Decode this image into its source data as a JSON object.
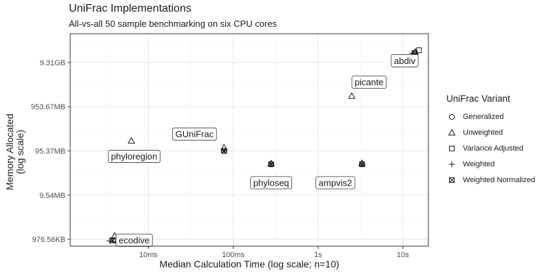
{
  "chart_data": {
    "type": "scatter",
    "title": "UniFrac Implementations",
    "subtitle": "All-vs-all 50 sample benchmarking on six CPU cores",
    "xlabel": "Median Calculation Time (log scale; n=10)",
    "ylabel_lines": [
      "Memory Allocated",
      "(log scale)"
    ],
    "x_scale": "log10",
    "y_scale": "log10",
    "x_unit": "seconds",
    "y_unit": "bytes",
    "xlim": [
      0.0012,
      20
    ],
    "ylim": [
      700000,
      45000000000
    ],
    "x_ticks": [
      {
        "value": 0.01,
        "label": "10ms"
      },
      {
        "value": 0.1,
        "label": "100ms"
      },
      {
        "value": 1,
        "label": "1s"
      },
      {
        "value": 10,
        "label": "10s"
      }
    ],
    "y_ticks": [
      {
        "value": 1000000,
        "label": "976.56KB"
      },
      {
        "value": 10000000,
        "label": "9.54MB"
      },
      {
        "value": 100000000,
        "label": "95.37MB"
      },
      {
        "value": 1000000000,
        "label": "953.67MB"
      },
      {
        "value": 10000000000,
        "label": "9.31GB"
      }
    ],
    "grid": true,
    "legend": {
      "title": "UniFrac Variant",
      "position": "right",
      "items": [
        {
          "name": "Generalized",
          "shape": "circle"
        },
        {
          "name": "Unweighted",
          "shape": "triangle"
        },
        {
          "name": "Variance Adjusted",
          "shape": "square"
        },
        {
          "name": "Weighted",
          "shape": "plus"
        },
        {
          "name": "Weighted Normalized",
          "shape": "boxed-x"
        }
      ]
    },
    "series": [
      {
        "name": "Generalized",
        "points": [
          {
            "label": "abdiv",
            "x": 13.5,
            "y": 16000000000
          },
          {
            "label": "phyloseq",
            "x": 0.28,
            "y": 50000000
          },
          {
            "label": "ampvis2",
            "x": 3.3,
            "y": 50000000
          },
          {
            "label": "ecodive",
            "x": 0.00395,
            "y": 960000
          },
          {
            "label": "GUniFrac",
            "x": 0.078,
            "y": 100000000
          }
        ]
      },
      {
        "name": "Unweighted",
        "points": [
          {
            "label": "abdiv",
            "x": 14.0,
            "y": 17500000000
          },
          {
            "label": "picante",
            "x": 2.5,
            "y": 1750000000
          },
          {
            "label": "phyloregion",
            "x": 0.0063,
            "y": 170000000
          },
          {
            "label": "GUniFrac",
            "x": 0.078,
            "y": 120000000
          },
          {
            "label": "phyloseq",
            "x": 0.28,
            "y": 52000000
          },
          {
            "label": "ampvis2",
            "x": 3.3,
            "y": 53000000
          },
          {
            "label": "ecodive",
            "x": 0.004,
            "y": 1200000
          }
        ]
      },
      {
        "name": "Variance Adjusted",
        "points": [
          {
            "label": "abdiv",
            "x": 15.5,
            "y": 19000000000
          },
          {
            "label": "ecodive",
            "x": 0.0041,
            "y": 940000
          }
        ]
      },
      {
        "name": "Weighted",
        "points": [
          {
            "label": "abdiv",
            "x": 13.0,
            "y": 16000000000
          },
          {
            "label": "phyloseq",
            "x": 0.28,
            "y": 50000000
          },
          {
            "label": "ampvis2",
            "x": 3.3,
            "y": 50000000
          },
          {
            "label": "GUniFrac",
            "x": 0.078,
            "y": 100000000
          },
          {
            "label": "ecodive",
            "x": 0.0035,
            "y": 920000
          }
        ]
      },
      {
        "name": "Weighted Normalized",
        "points": [
          {
            "label": "abdiv",
            "x": 13.8,
            "y": 16500000000
          },
          {
            "label": "phyloseq",
            "x": 0.28,
            "y": 50000000
          },
          {
            "label": "ampvis2",
            "x": 3.3,
            "y": 50000000
          },
          {
            "label": "GUniFrac",
            "x": 0.078,
            "y": 100000000
          },
          {
            "label": "ecodive",
            "x": 0.0038,
            "y": 950000
          }
        ]
      }
    ],
    "annotations": [
      {
        "text": "abdiv",
        "x": 10.5,
        "y": 11000000000
      },
      {
        "text": "picante",
        "x": 4.0,
        "y": 3600000000
      },
      {
        "text": "GUniFrac",
        "x": 0.035,
        "y": 240000000
      },
      {
        "text": "phyloregion",
        "x": 0.0068,
        "y": 75000000
      },
      {
        "text": "phyloseq",
        "x": 0.28,
        "y": 19000000
      },
      {
        "text": "ampvis2",
        "x": 1.6,
        "y": 19000000
      },
      {
        "text": "ecodive",
        "x": 0.0068,
        "y": 950000
      }
    ]
  }
}
